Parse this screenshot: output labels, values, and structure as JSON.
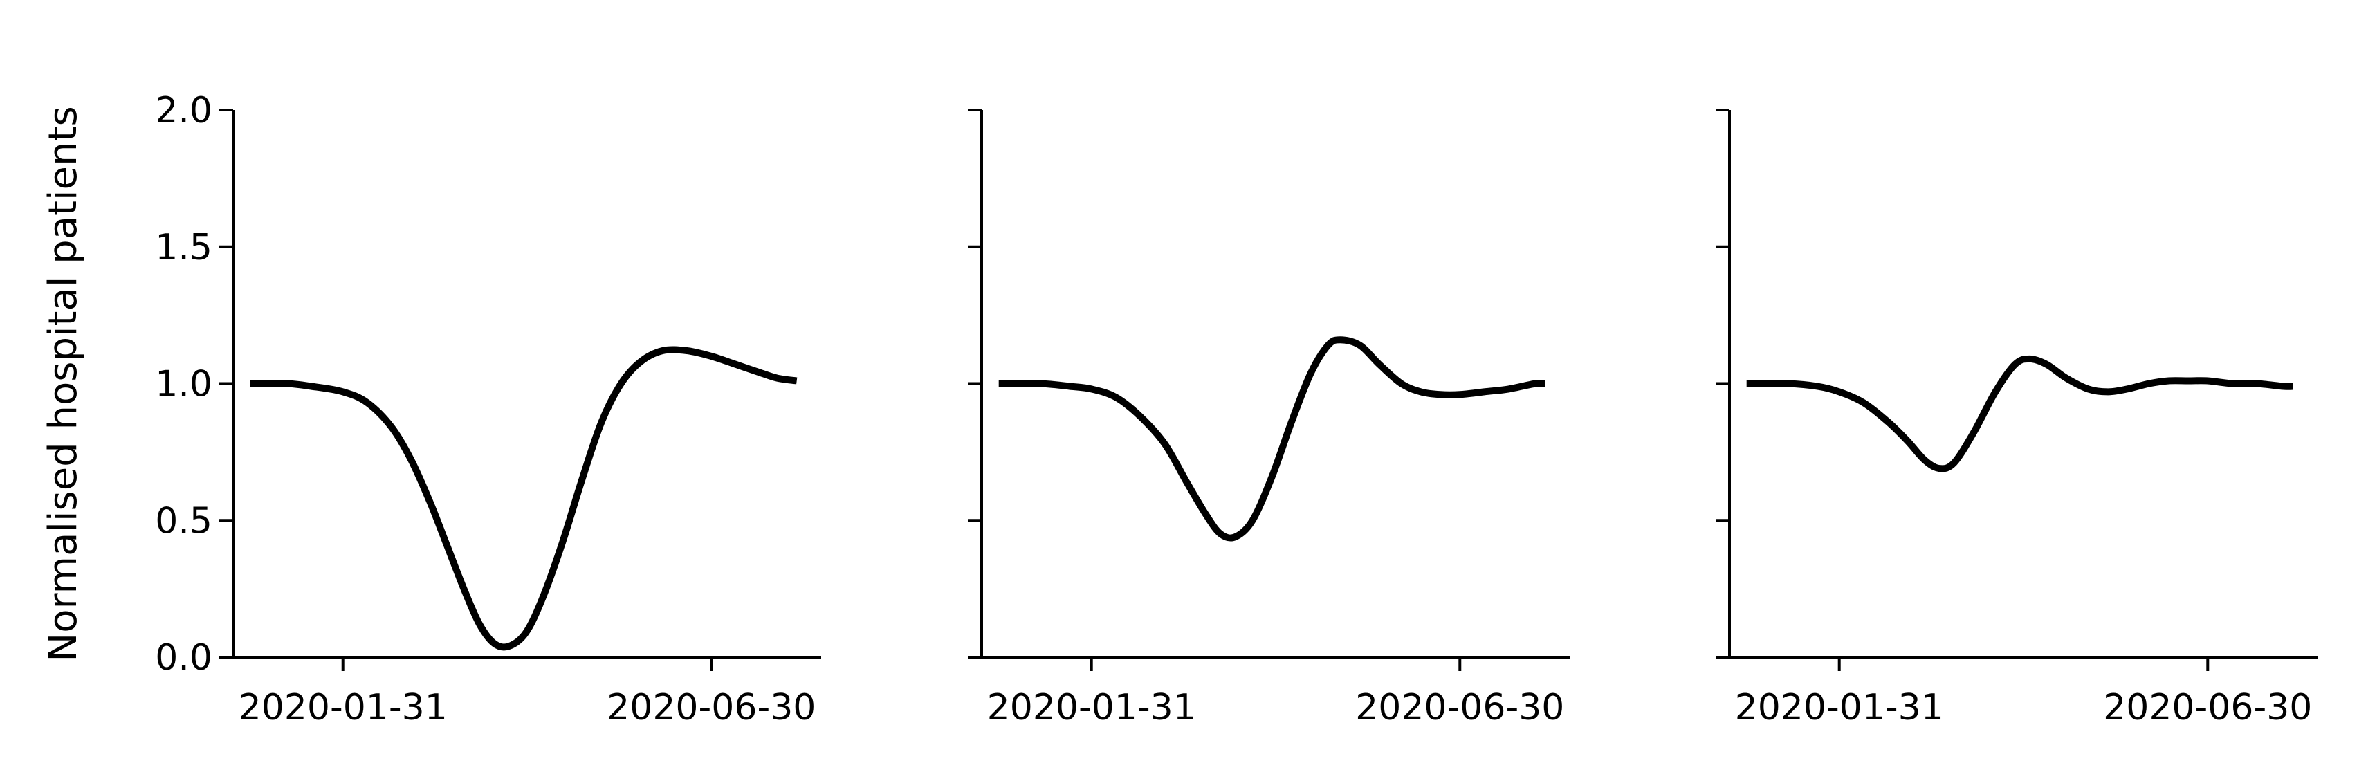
{
  "chart_data": {
    "type": "line",
    "ylabel": "Normalised hospital patients",
    "shared_y": true,
    "ylim": [
      0.0,
      2.0
    ],
    "yticks": [
      0.0,
      0.5,
      1.0,
      1.5,
      2.0
    ],
    "ytick_labels": [
      "0.0",
      "0.5",
      "1.0",
      "1.5",
      "2.0"
    ],
    "xlim": [
      "2019-12-17",
      "2020-08-14"
    ],
    "xticks": [
      "2020-01-31",
      "2020-06-30"
    ],
    "xtick_labels": [
      "2020-01-31",
      "2020-06-30"
    ],
    "line_color": "#000000",
    "grid": false,
    "panels": [
      {
        "series": [
          {
            "x": [
              "2019-12-24",
              "2020-01-08",
              "2020-01-18",
              "2020-01-31",
              "2020-02-10",
              "2020-02-20",
              "2020-02-28",
              "2020-03-07",
              "2020-03-14",
              "2020-03-21",
              "2020-03-27",
              "2020-04-02",
              "2020-04-08",
              "2020-04-15",
              "2020-04-22",
              "2020-04-30",
              "2020-05-08",
              "2020-05-16",
              "2020-05-24",
              "2020-06-01",
              "2020-06-10",
              "2020-06-20",
              "2020-06-30",
              "2020-07-10",
              "2020-07-20",
              "2020-07-27",
              "2020-08-04"
            ],
            "y": [
              1.0,
              1.0,
              0.99,
              0.97,
              0.93,
              0.84,
              0.72,
              0.56,
              0.4,
              0.24,
              0.12,
              0.05,
              0.04,
              0.09,
              0.22,
              0.42,
              0.65,
              0.86,
              1.0,
              1.08,
              1.12,
              1.12,
              1.1,
              1.07,
              1.04,
              1.02,
              1.01
            ]
          }
        ]
      },
      {
        "series": [
          {
            "x": [
              "2019-12-24",
              "2020-01-10",
              "2020-01-22",
              "2020-01-31",
              "2020-02-10",
              "2020-02-20",
              "2020-03-01",
              "2020-03-10",
              "2020-03-18",
              "2020-03-24",
              "2020-03-30",
              "2020-04-06",
              "2020-04-14",
              "2020-04-22",
              "2020-04-30",
              "2020-05-07",
              "2020-05-12",
              "2020-05-20",
              "2020-05-28",
              "2020-06-06",
              "2020-06-14",
              "2020-06-22",
              "2020-06-30",
              "2020-07-10",
              "2020-07-20",
              "2020-07-31",
              "2020-08-04"
            ],
            "y": [
              1.0,
              1.0,
              0.99,
              0.98,
              0.95,
              0.88,
              0.78,
              0.64,
              0.52,
              0.45,
              0.44,
              0.5,
              0.66,
              0.86,
              1.04,
              1.14,
              1.16,
              1.14,
              1.07,
              1.0,
              0.97,
              0.96,
              0.96,
              0.97,
              0.98,
              1.0,
              1.0
            ]
          }
        ]
      },
      {
        "series": [
          {
            "x": [
              "2019-12-24",
              "2020-01-10",
              "2020-01-22",
              "2020-01-31",
              "2020-02-10",
              "2020-02-20",
              "2020-02-28",
              "2020-03-06",
              "2020-03-12",
              "2020-03-18",
              "2020-03-26",
              "2020-04-04",
              "2020-04-12",
              "2020-04-18",
              "2020-04-25",
              "2020-05-03",
              "2020-05-12",
              "2020-05-20",
              "2020-05-28",
              "2020-06-06",
              "2020-06-14",
              "2020-06-22",
              "2020-06-30",
              "2020-07-10",
              "2020-07-20",
              "2020-07-31",
              "2020-08-04"
            ],
            "y": [
              1.0,
              1.0,
              0.99,
              0.97,
              0.93,
              0.86,
              0.79,
              0.72,
              0.69,
              0.71,
              0.82,
              0.97,
              1.07,
              1.09,
              1.07,
              1.02,
              0.98,
              0.97,
              0.98,
              1.0,
              1.01,
              1.01,
              1.01,
              1.0,
              1.0,
              0.99,
              0.99
            ]
          }
        ]
      }
    ]
  }
}
